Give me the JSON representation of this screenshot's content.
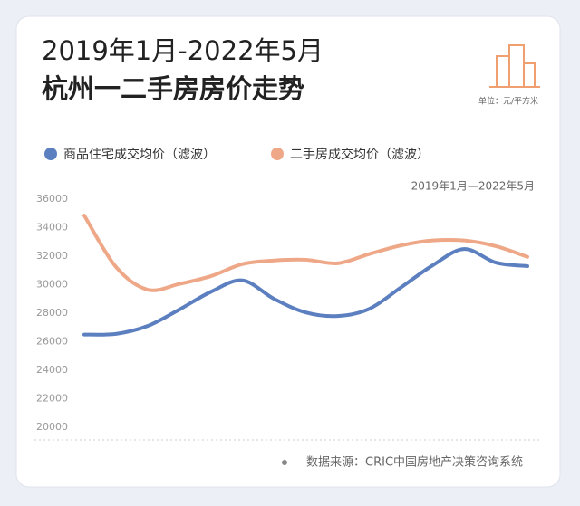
{
  "chart_data": {
    "type": "line",
    "title": "2019年1月-2022年5月",
    "subtitle": "杭州一二手房房价走势",
    "unit": "单位：元/平方米",
    "period": "2019年1月—2022年5月",
    "source": "数据来源：CRIC中国房地产决策咨询系统",
    "categories": [
      null,
      null,
      null,
      null,
      null,
      null,
      null,
      null,
      null,
      null,
      null,
      null,
      null,
      null,
      null
    ],
    "series": [
      {
        "name": "商品住宅成交均价（滤波）",
        "color": "#5b7fbf",
        "values": [
          26500,
          26550,
          27100,
          28250,
          29500,
          30300,
          29000,
          28050,
          27800,
          28300,
          29800,
          31350,
          32500,
          31550,
          31300
        ]
      },
      {
        "name": "二手房成交均价（滤波）",
        "color": "#eea888",
        "values": [
          34850,
          31250,
          29650,
          30050,
          30600,
          31450,
          31700,
          31750,
          31500,
          32150,
          32750,
          33100,
          33100,
          32700,
          31950
        ]
      }
    ],
    "ylim": [
      20000,
      36000
    ],
    "yticks": [
      20000,
      22000,
      24000,
      26000,
      28000,
      30000,
      32000,
      34000,
      36000
    ],
    "grid": false
  }
}
